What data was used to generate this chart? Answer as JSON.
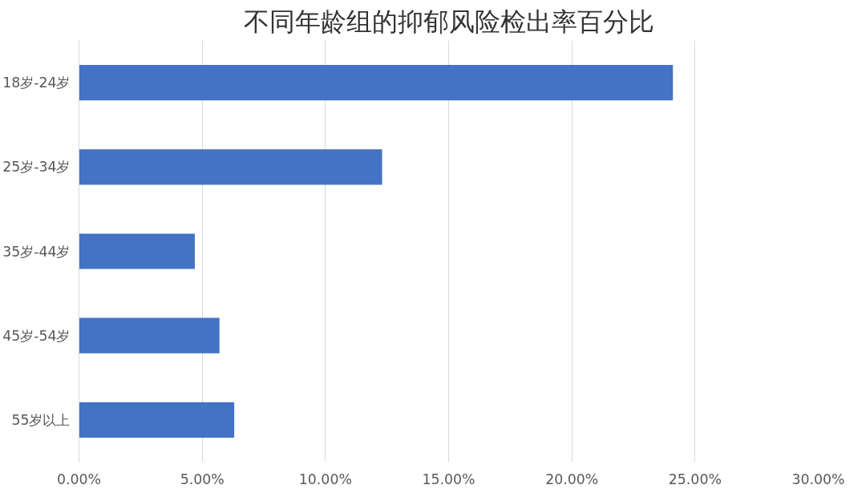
{
  "chart_data": {
    "type": "bar",
    "orientation": "horizontal",
    "title": "不同年龄组的抑郁风险检出率百分比",
    "categories": [
      "18岁-24岁",
      "25岁-34岁",
      "35岁-44岁",
      "45岁-54岁",
      "55岁以上"
    ],
    "values": [
      24.1,
      12.3,
      4.7,
      5.7,
      6.3
    ],
    "color": "#4472c4",
    "xlim": [
      0,
      30
    ],
    "xticks": [
      {
        "value": 0,
        "label": "0.00%"
      },
      {
        "value": 5,
        "label": "5.00%"
      },
      {
        "value": 10,
        "label": "10.00%"
      },
      {
        "value": 15,
        "label": "15.00%"
      },
      {
        "value": 20,
        "label": "20.00%"
      },
      {
        "value": 25,
        "label": "25.00%"
      },
      {
        "value": 30,
        "label": "30.00%"
      }
    ],
    "grid": "x"
  }
}
